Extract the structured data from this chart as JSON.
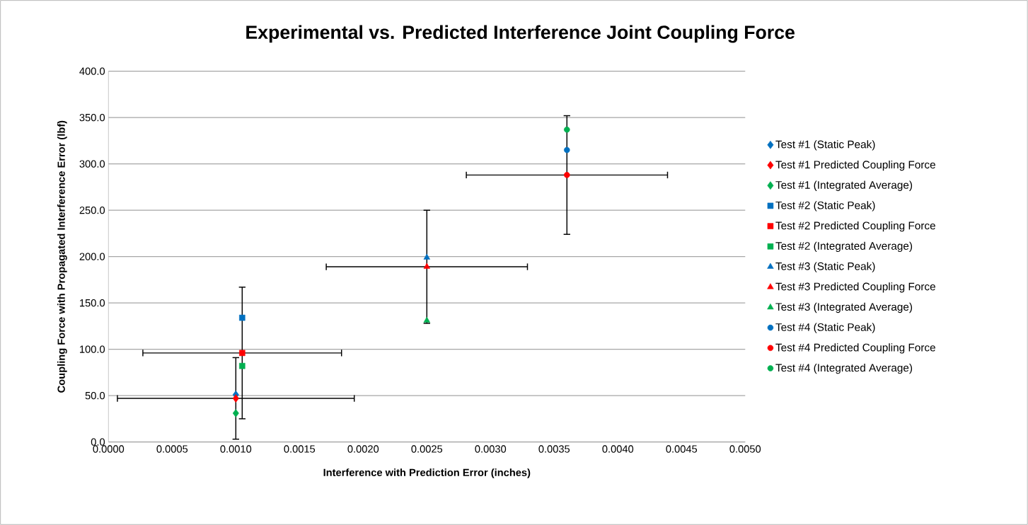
{
  "chart_data": {
    "type": "scatter",
    "title": "Experimental vs. Predicted Interference Joint Coupling Force",
    "xlabel": "Interference with Prediction Error (inches)",
    "ylabel": "Coupling Force with Propagated Interference Error (lbf)",
    "xlim": [
      0,
      0.005
    ],
    "ylim": [
      0,
      400
    ],
    "xticks": [
      {
        "value": 0,
        "label": "0.0000"
      },
      {
        "value": 0.0005,
        "label": "0.0005"
      },
      {
        "value": 0.001,
        "label": "0.0010"
      },
      {
        "value": 0.0015,
        "label": "0.0015"
      },
      {
        "value": 0.002,
        "label": "0.0020"
      },
      {
        "value": 0.0025,
        "label": "0.0025"
      },
      {
        "value": 0.003,
        "label": "0.0030"
      },
      {
        "value": 0.0035,
        "label": "0.0035"
      },
      {
        "value": 0.004,
        "label": "0.0040"
      },
      {
        "value": 0.0045,
        "label": "0.0045"
      },
      {
        "value": 0.005,
        "label": "0.0050"
      }
    ],
    "yticks": [
      {
        "value": 0,
        "label": "0.0"
      },
      {
        "value": 50,
        "label": "50.0"
      },
      {
        "value": 100,
        "label": "100.0"
      },
      {
        "value": 150,
        "label": "150.0"
      },
      {
        "value": 200,
        "label": "200.0"
      },
      {
        "value": 250,
        "label": "250.0"
      },
      {
        "value": 300,
        "label": "300.0"
      },
      {
        "value": 350,
        "label": "350.0"
      },
      {
        "value": 400,
        "label": "400.0"
      }
    ],
    "grid": "y",
    "legend": "right",
    "series": [
      {
        "name": "Test #1 (Static Peak)",
        "color": "#0070c0",
        "marker": "diamond",
        "x": [
          0.001
        ],
        "values": [
          51
        ]
      },
      {
        "name": "Test #1 Predicted Coupling Force",
        "color": "#ff0000",
        "marker": "diamond",
        "x": [
          0.001
        ],
        "values": [
          47
        ],
        "errors": [
          44
        ],
        "xerrors": [
          0.00093
        ]
      },
      {
        "name": "Test #1 (Integrated Average)",
        "color": "#00b050",
        "marker": "diamond",
        "x": [
          0.001
        ],
        "values": [
          31
        ]
      },
      {
        "name": "Test #2 (Static Peak)",
        "color": "#0070c0",
        "marker": "square",
        "x": [
          0.00105
        ],
        "values": [
          134
        ]
      },
      {
        "name": "Test #2 Predicted Coupling Force",
        "color": "#ff0000",
        "marker": "square",
        "x": [
          0.00105
        ],
        "values": [
          96
        ],
        "errors": [
          71
        ],
        "xerrors": [
          0.00078
        ]
      },
      {
        "name": "Test #2 (Integrated Average)",
        "color": "#00b050",
        "marker": "square",
        "x": [
          0.00105
        ],
        "values": [
          82
        ]
      },
      {
        "name": "Test #3 (Static Peak)",
        "color": "#0070c0",
        "marker": "triangle",
        "x": [
          0.0025
        ],
        "values": [
          199
        ]
      },
      {
        "name": "Test #3 Predicted Coupling Force",
        "color": "#ff0000",
        "marker": "triangle",
        "x": [
          0.0025
        ],
        "values": [
          189
        ],
        "errors": [
          61
        ],
        "xerrors": [
          0.00079
        ]
      },
      {
        "name": "Test #3 (Integrated Average)",
        "color": "#00b050",
        "marker": "triangle",
        "x": [
          0.0025
        ],
        "values": [
          131
        ]
      },
      {
        "name": "Test #4 (Static Peak)",
        "color": "#0070c0",
        "marker": "circle",
        "x": [
          0.0036
        ],
        "values": [
          315
        ]
      },
      {
        "name": "Test #4 Predicted Coupling Force",
        "color": "#ff0000",
        "marker": "circle",
        "x": [
          0.0036
        ],
        "values": [
          288
        ],
        "errors": [
          64
        ],
        "xerrors": [
          0.00079
        ]
      },
      {
        "name": "Test #4 (Integrated Average)",
        "color": "#00b050",
        "marker": "circle",
        "x": [
          0.0036
        ],
        "values": [
          337
        ]
      }
    ]
  }
}
